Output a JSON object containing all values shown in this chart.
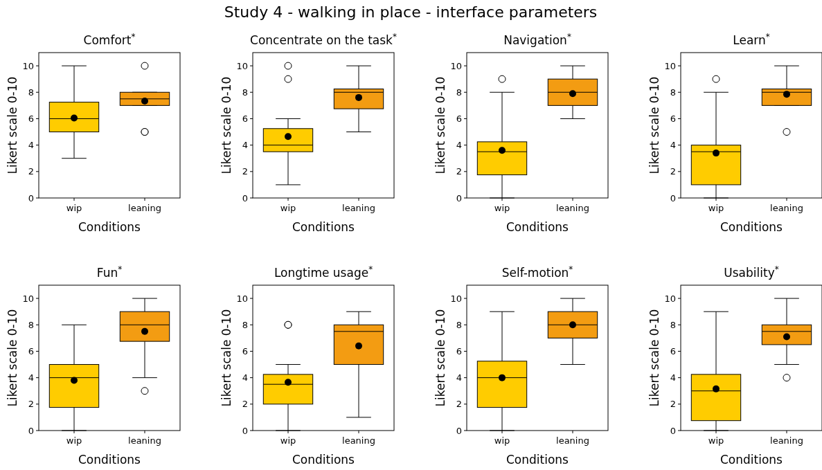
{
  "chart_data": [
    {
      "type": "box",
      "title": "Comfort$^{*}$",
      "xlabel": "Conditions",
      "ylabel": "Likert scale 0-10",
      "categories": [
        "wip",
        "leaning"
      ],
      "colors": [
        "#ffcc00",
        "#f39c12"
      ],
      "ylim": [
        0,
        11
      ],
      "yticks": [
        0,
        2,
        4,
        6,
        8,
        10
      ],
      "annotations": [
        "Study 4 - walking in place - interface parameters"
      ],
      "boxes": [
        {
          "low": 3,
          "q1": 5,
          "median": 6,
          "q3": 7.25,
          "high": 10,
          "mean": 6.05
        },
        {
          "low": 7,
          "q1": 7,
          "median": 7.5,
          "q3": 8,
          "high": 8,
          "mean": 7.33,
          "outliers": [
            10,
            5,
            5
          ]
        }
      ]
    },
    {
      "type": "box",
      "title": "Concentrate on the task$^{*}$",
      "xlabel": "Conditions",
      "ylabel": "Likert scale 0-10",
      "categories": [
        "wip",
        "leaning"
      ],
      "colors": [
        "#ffcc00",
        "#f39c12"
      ],
      "ylim": [
        0,
        11
      ],
      "yticks": [
        0,
        2,
        4,
        6,
        8,
        10
      ],
      "boxes": [
        {
          "low": 1,
          "q1": 3.5,
          "median": 4,
          "q3": 5.25,
          "high": 6,
          "mean": 4.65,
          "outliers": [
            9,
            10
          ]
        },
        {
          "low": 5,
          "q1": 6.75,
          "median": 8,
          "q3": 8.25,
          "high": 10,
          "mean": 7.6
        }
      ]
    },
    {
      "type": "box",
      "title": "Navigation$^{*}$",
      "xlabel": "Conditions",
      "ylabel": "Likert scale 0-10",
      "categories": [
        "wip",
        "leaning"
      ],
      "colors": [
        "#ffcc00",
        "#f39c12"
      ],
      "ylim": [
        0,
        11
      ],
      "yticks": [
        0,
        2,
        4,
        6,
        8,
        10
      ],
      "boxes": [
        {
          "low": 0,
          "q1": 1.75,
          "median": 3.5,
          "q3": 4.25,
          "high": 8,
          "mean": 3.6,
          "outliers": [
            9
          ]
        },
        {
          "low": 6,
          "q1": 7,
          "median": 8,
          "q3": 9,
          "high": 10,
          "mean": 7.9
        }
      ]
    },
    {
      "type": "box",
      "title": "Learn$^{*}$",
      "xlabel": "Conditions",
      "ylabel": "Likert scale 0-10",
      "categories": [
        "wip",
        "leaning"
      ],
      "colors": [
        "#ffcc00",
        "#f39c12"
      ],
      "ylim": [
        0,
        11
      ],
      "yticks": [
        0,
        2,
        4,
        6,
        8,
        10
      ],
      "boxes": [
        {
          "low": 0,
          "q1": 1,
          "median": 3.5,
          "q3": 4,
          "high": 8,
          "mean": 3.4,
          "outliers": [
            9
          ]
        },
        {
          "low": 7,
          "q1": 7,
          "median": 8,
          "q3": 8.25,
          "high": 10,
          "mean": 7.85,
          "outliers": [
            5
          ]
        }
      ]
    },
    {
      "type": "box",
      "title": "Fun$^{*}$",
      "xlabel": "Conditions",
      "ylabel": "Likert scale 0-10",
      "categories": [
        "wip",
        "leaning"
      ],
      "colors": [
        "#ffcc00",
        "#f39c12"
      ],
      "ylim": [
        0,
        11
      ],
      "yticks": [
        0,
        2,
        4,
        6,
        8,
        10
      ],
      "boxes": [
        {
          "low": 0,
          "q1": 1.75,
          "median": 4,
          "q3": 5,
          "high": 8,
          "mean": 3.8
        },
        {
          "low": 4,
          "q1": 6.75,
          "median": 8,
          "q3": 9,
          "high": 10,
          "mean": 7.5,
          "outliers": [
            3
          ]
        }
      ]
    },
    {
      "type": "box",
      "title": "Longtime usage$^{*}$",
      "xlabel": "Conditions",
      "ylabel": "Likert scale 0-10",
      "categories": [
        "wip",
        "leaning"
      ],
      "colors": [
        "#ffcc00",
        "#f39c12"
      ],
      "ylim": [
        0,
        11
      ],
      "yticks": [
        0,
        2,
        4,
        6,
        8,
        10
      ],
      "boxes": [
        {
          "low": 0,
          "q1": 2,
          "median": 3.5,
          "q3": 4.25,
          "high": 5,
          "mean": 3.65,
          "outliers": [
            8,
            8
          ]
        },
        {
          "low": 1,
          "q1": 5,
          "median": 7.5,
          "q3": 8,
          "high": 9,
          "mean": 6.4
        }
      ]
    },
    {
      "type": "box",
      "title": "Self-motion$^{*}$",
      "xlabel": "Conditions",
      "ylabel": "Likert scale 0-10",
      "categories": [
        "wip",
        "leaning"
      ],
      "colors": [
        "#ffcc00",
        "#f39c12"
      ],
      "ylim": [
        0,
        11
      ],
      "yticks": [
        0,
        2,
        4,
        6,
        8,
        10
      ],
      "boxes": [
        {
          "low": 0,
          "q1": 1.75,
          "median": 4,
          "q3": 5.25,
          "high": 9,
          "mean": 4
        },
        {
          "low": 5,
          "q1": 7,
          "median": 8,
          "q3": 9,
          "high": 10,
          "mean": 8
        }
      ]
    },
    {
      "type": "box",
      "title": "Usability$^{*}$",
      "xlabel": "Conditions",
      "ylabel": "Likert scale 0-10",
      "categories": [
        "wip",
        "leaning"
      ],
      "colors": [
        "#ffcc00",
        "#f39c12"
      ],
      "ylim": [
        0,
        11
      ],
      "yticks": [
        0,
        2,
        4,
        6,
        8,
        10
      ],
      "boxes": [
        {
          "low": 0,
          "q1": 0.75,
          "median": 3,
          "q3": 4.25,
          "high": 9,
          "mean": 3.15
        },
        {
          "low": 5,
          "q1": 6.5,
          "median": 7.5,
          "q3": 8,
          "high": 10,
          "mean": 7.1,
          "outliers": [
            4
          ]
        }
      ]
    }
  ]
}
